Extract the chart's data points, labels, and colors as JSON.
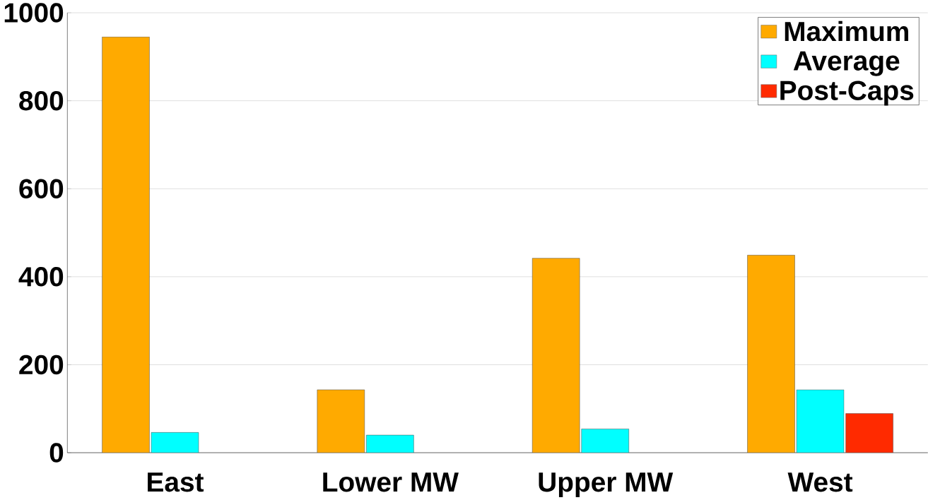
{
  "chart_data": {
    "type": "bar",
    "categories": [
      "East",
      "Lower MW",
      "Upper MW",
      "West"
    ],
    "series": [
      {
        "name": "Maximum",
        "color": "#ffaa00",
        "values": [
          945,
          143,
          442,
          449
        ]
      },
      {
        "name": "Average",
        "color": "#00ffff",
        "values": [
          46,
          40,
          54,
          143
        ]
      },
      {
        "name": "Post-Caps",
        "color": "#ff2a00",
        "values": [
          null,
          null,
          null,
          89
        ]
      }
    ],
    "ylim": [
      0,
      1000
    ],
    "yticks": [
      0,
      200,
      400,
      600,
      800,
      1000
    ],
    "grid": "y",
    "legend": "top right"
  }
}
